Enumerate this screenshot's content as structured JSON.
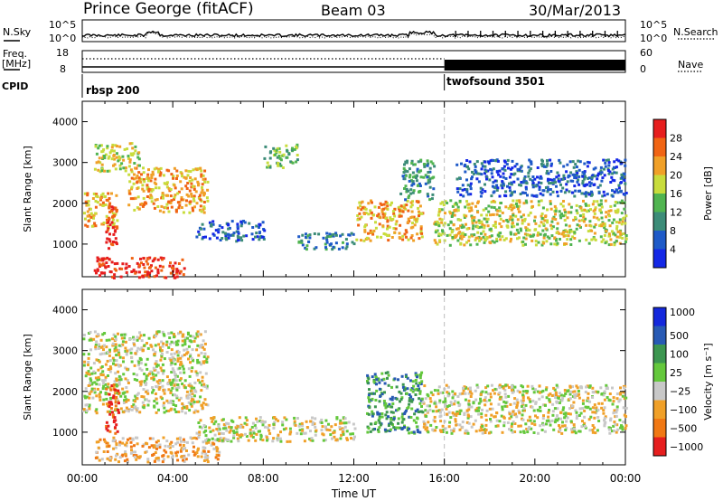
{
  "header": {
    "site": "Prince George (fitACF)",
    "beam": "Beam 03",
    "date": "30/Mar/2013"
  },
  "strips": {
    "nsky_label": "N.Sky",
    "nsky_ticks": [
      "10^5",
      "10^0"
    ],
    "nsearch_label": "N.Search",
    "nsearch_ticks": [
      "10^5",
      "10^0"
    ],
    "freq_label": "Freq.",
    "freq_unit": "[MHz]",
    "freq_ticks": [
      "18",
      "8"
    ],
    "nave_label": "Nave",
    "nave_ticks": [
      "60",
      "0"
    ],
    "cpid_label": "CPID",
    "cpid_modes": [
      "rbsp 200",
      "twofsound 3501"
    ]
  },
  "colors": {
    "power": [
      "#1428e6",
      "#1e5ac8",
      "#3c8c78",
      "#50b450",
      "#c8dc3c",
      "#f0a028",
      "#f06414",
      "#e61e1e"
    ],
    "velocity": [
      "#1428dc",
      "#285ab4",
      "#3c9650",
      "#64c83c",
      "#c8c8c8",
      "#f0a028",
      "#f07814",
      "#e61e1e"
    ]
  },
  "chart_data": [
    {
      "type": "heatmap",
      "name": "power",
      "ylabel": "Slant Range [km]",
      "yticks": [
        1000,
        2000,
        3000,
        4000
      ],
      "ylim": [
        200,
        4500
      ],
      "xlim_hours": [
        0,
        24
      ],
      "colorbar_label": "Power [dB]",
      "colorbar_ticks": [
        "4",
        "8",
        "12",
        "16",
        "20",
        "24",
        "28"
      ],
      "echo_regions": [
        {
          "t": [
            0.0,
            1.5
          ],
          "range": [
            1400,
            2300
          ],
          "level": 5
        },
        {
          "t": [
            0.5,
            2.5
          ],
          "range": [
            2800,
            3500
          ],
          "level": 4
        },
        {
          "t": [
            1.0,
            1.5
          ],
          "range": [
            900,
            2000
          ],
          "level": 7
        },
        {
          "t": [
            2.0,
            5.5
          ],
          "range": [
            1800,
            2900
          ],
          "level": 5
        },
        {
          "t": [
            0.5,
            4.5
          ],
          "range": [
            200,
            700
          ],
          "level": 7
        },
        {
          "t": [
            5.0,
            8.0
          ],
          "range": [
            1100,
            1600
          ],
          "level": 1
        },
        {
          "t": [
            8.0,
            9.5
          ],
          "range": [
            2900,
            3500
          ],
          "level": 3
        },
        {
          "t": [
            9.5,
            12.0
          ],
          "range": [
            900,
            1300
          ],
          "level": 2
        },
        {
          "t": [
            12.0,
            15.0
          ],
          "range": [
            1100,
            2100
          ],
          "level": 5
        },
        {
          "t": [
            14.0,
            15.5
          ],
          "range": [
            2100,
            3100
          ],
          "level": 2
        },
        {
          "t": [
            15.5,
            24.0
          ],
          "range": [
            1000,
            2100
          ],
          "level": 4
        },
        {
          "t": [
            16.5,
            24.0
          ],
          "range": [
            2200,
            3100
          ],
          "level": 1
        }
      ]
    },
    {
      "type": "heatmap",
      "name": "velocity",
      "ylabel": "Slant Range [km]",
      "yticks": [
        1000,
        2000,
        3000,
        4000
      ],
      "ylim": [
        200,
        4500
      ],
      "xlim_hours": [
        0,
        24
      ],
      "xticks": [
        "00:00",
        "04:00",
        "08:00",
        "12:00",
        "16:00",
        "20:00",
        "00:00"
      ],
      "xlabel": "Time UT",
      "colorbar_label": "Velocity [m s⁻¹]",
      "colorbar_ticks": [
        "1000",
        "500",
        "100",
        "25",
        "−25",
        "−100",
        "−500",
        "−1000"
      ],
      "echo_regions": [
        {
          "t": [
            0.0,
            5.5
          ],
          "range": [
            1500,
            3500
          ],
          "level": 4
        },
        {
          "t": [
            1.0,
            1.6
          ],
          "range": [
            1000,
            2200
          ],
          "level": 7
        },
        {
          "t": [
            0.5,
            6.0
          ],
          "range": [
            300,
            900
          ],
          "level": 5
        },
        {
          "t": [
            5.0,
            12.0
          ],
          "range": [
            800,
            1400
          ],
          "level": 4
        },
        {
          "t": [
            12.5,
            15.0
          ],
          "range": [
            1000,
            2500
          ],
          "level": 2
        },
        {
          "t": [
            15.0,
            24.0
          ],
          "range": [
            1000,
            2200
          ],
          "level": 4
        }
      ]
    }
  ]
}
